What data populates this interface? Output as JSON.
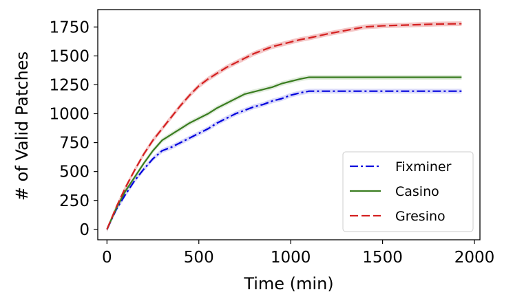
{
  "chart_data": {
    "type": "line",
    "xlabel": "Time (min)",
    "ylabel": "# of Valid Patches",
    "xlim": [
      -50,
      2030
    ],
    "ylim": [
      -90,
      1900
    ],
    "xticks": [
      0,
      500,
      1000,
      1500,
      2000
    ],
    "yticks": [
      0,
      250,
      500,
      750,
      1000,
      1250,
      1500,
      1750
    ],
    "grid": false,
    "legend_position": "lower-right",
    "series": [
      {
        "name": "Fixminer",
        "color": "#0000dd",
        "style": "dashdot",
        "x": [
          0,
          50,
          100,
          150,
          200,
          250,
          300,
          350,
          400,
          450,
          500,
          550,
          600,
          650,
          700,
          750,
          800,
          850,
          900,
          950,
          1000,
          1050,
          1100,
          1200,
          1300,
          1400,
          1500,
          1600,
          1700,
          1800,
          1930
        ],
        "y": [
          0,
          170,
          300,
          420,
          520,
          610,
          680,
          710,
          750,
          790,
          830,
          870,
          920,
          960,
          1000,
          1030,
          1060,
          1080,
          1110,
          1130,
          1160,
          1180,
          1195,
          1195,
          1195,
          1195,
          1195,
          1195,
          1195,
          1195,
          1195
        ]
      },
      {
        "name": "Casino",
        "color": "#3a7d20",
        "style": "solid",
        "x": [
          0,
          50,
          100,
          150,
          200,
          250,
          300,
          350,
          400,
          450,
          500,
          550,
          600,
          650,
          700,
          750,
          800,
          850,
          900,
          950,
          1000,
          1050,
          1100,
          1200,
          1300,
          1400,
          1500,
          1600,
          1700,
          1800,
          1930
        ],
        "y": [
          0,
          180,
          330,
          450,
          570,
          680,
          770,
          820,
          870,
          920,
          960,
          1000,
          1050,
          1090,
          1130,
          1170,
          1190,
          1210,
          1230,
          1260,
          1280,
          1300,
          1315,
          1315,
          1315,
          1315,
          1315,
          1315,
          1315,
          1315,
          1315
        ]
      },
      {
        "name": "Gresino",
        "color": "#d42020",
        "style": "dashed",
        "x": [
          0,
          50,
          100,
          150,
          200,
          250,
          300,
          350,
          400,
          450,
          500,
          550,
          600,
          650,
          700,
          750,
          800,
          850,
          900,
          950,
          1000,
          1050,
          1100,
          1200,
          1300,
          1400,
          1500,
          1600,
          1700,
          1800,
          1930
        ],
        "y": [
          0,
          190,
          360,
          510,
          650,
          770,
          870,
          970,
          1070,
          1160,
          1240,
          1300,
          1350,
          1400,
          1440,
          1480,
          1520,
          1550,
          1580,
          1600,
          1620,
          1640,
          1655,
          1690,
          1720,
          1750,
          1760,
          1765,
          1770,
          1775,
          1778
        ]
      }
    ]
  }
}
